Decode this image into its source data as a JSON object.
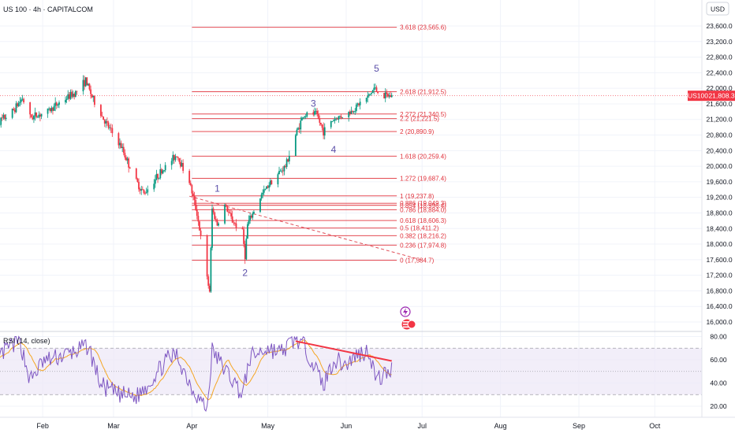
{
  "header": {
    "symbol_label": "US 100 · 4h · CAPITALCOM",
    "currency": "USD"
  },
  "price_badge": {
    "symbol": "US100",
    "price": "21,808.3"
  },
  "colors": {
    "up": "#089981",
    "down": "#f23645",
    "fib": "#e0303a",
    "wave": "#5b4fa8",
    "rsi_line": "#7e57c2",
    "rsi_ma": "#f5a623",
    "rsi_band": "#ede7f6",
    "divergence": "#f23645",
    "projection": "#e0505a",
    "grid": "#f0f3fa",
    "text": "#131722"
  },
  "chart_data": [
    {
      "type": "candlestick",
      "timeframe": "4h",
      "y_axis_ticks": [
        16000,
        16400,
        16800,
        17200,
        17600,
        18000,
        18400,
        18800,
        19200,
        19600,
        20000,
        20400,
        20800,
        21200,
        21600,
        22000,
        22400,
        22800,
        23200,
        23600
      ],
      "y_axis_tick_labels": [
        "16,000.0",
        "16,400.0",
        "16,800.0",
        "17,200.0",
        "17,600.0",
        "18,000.0",
        "18,400.0",
        "18,800.0",
        "19,200.0",
        "19,600.0",
        "20,000.0",
        "20,400.0",
        "20,800.0",
        "21,200.0",
        "21,600.0",
        "22,000.0",
        "22,400.0",
        "22,800.0",
        "23,200.0",
        "23,600.0"
      ],
      "ylim": [
        15900,
        23900
      ],
      "x_axis_labels": [
        {
          "label": "Feb",
          "date": "2025-02-01"
        },
        {
          "label": "Mar",
          "date": "2025-03-01"
        },
        {
          "label": "Apr",
          "date": "2025-04-01"
        },
        {
          "label": "May",
          "date": "2025-05-01"
        },
        {
          "label": "Jun",
          "date": "2025-06-01"
        },
        {
          "label": "Jul",
          "date": "2025-07-01"
        },
        {
          "label": "Aug",
          "date": "2025-08-01"
        },
        {
          "label": "Sep",
          "date": "2025-09-01"
        },
        {
          "label": "Oct",
          "date": "2025-10-01"
        }
      ],
      "xlim": [
        "2025-01-12",
        "2025-10-19"
      ],
      "price_path": [
        [
          "2025-01-12",
          20900
        ],
        [
          "2025-01-15",
          21150
        ],
        [
          "2025-01-20",
          21400
        ],
        [
          "2025-01-24",
          21750
        ],
        [
          "2025-01-27",
          21250
        ],
        [
          "2025-02-03",
          21400
        ],
        [
          "2025-02-08",
          21650
        ],
        [
          "2025-02-14",
          21900
        ],
        [
          "2025-02-18",
          22200
        ],
        [
          "2025-02-21",
          21700
        ],
        [
          "2025-02-26",
          21100
        ],
        [
          "2025-03-04",
          20500
        ],
        [
          "2025-03-10",
          19600
        ],
        [
          "2025-03-13",
          19300
        ],
        [
          "2025-03-19",
          19800
        ],
        [
          "2025-03-26",
          20300
        ],
        [
          "2025-03-31",
          19600
        ],
        [
          "2025-04-03",
          18800
        ],
        [
          "2025-04-07",
          17100
        ],
        [
          "2025-04-08",
          16800
        ],
        [
          "2025-04-09",
          18900
        ],
        [
          "2025-04-11",
          18500
        ],
        [
          "2025-04-14",
          19000
        ],
        [
          "2025-04-17",
          18600
        ],
        [
          "2025-04-21",
          18300
        ],
        [
          "2025-04-22",
          17700
        ],
        [
          "2025-04-23",
          18500
        ],
        [
          "2025-04-28",
          19200
        ],
        [
          "2025-05-02",
          19600
        ],
        [
          "2025-05-08",
          20000
        ],
        [
          "2025-05-12",
          20800
        ],
        [
          "2025-05-15",
          21300
        ],
        [
          "2025-05-20",
          21350
        ],
        [
          "2025-05-23",
          20900
        ],
        [
          "2025-05-27",
          21200
        ],
        [
          "2025-06-03",
          21400
        ],
        [
          "2025-06-06",
          21600
        ],
        [
          "2025-06-10",
          21800
        ],
        [
          "2025-06-12",
          22000
        ],
        [
          "2025-06-16",
          21800
        ],
        [
          "2025-06-19",
          21808
        ]
      ],
      "fib_levels": [
        {
          "label": "3.618 (23,565.6)",
          "value": 23565.6
        },
        {
          "label": "2.618 (21,912.5)",
          "value": 21912.5
        },
        {
          "label": "2.272 (21,340.5)",
          "value": 21340.5
        },
        {
          "label": "2.2 (21,221.5)",
          "value": 21221.5
        },
        {
          "label": "2 (20,890.9)",
          "value": 20890.9
        },
        {
          "label": "1.618 (20,259.4)",
          "value": 20259.4
        },
        {
          "label": "1.272 (19,687.4)",
          "value": 19687.4
        },
        {
          "label": "1 (19,237.8)",
          "value": 19237.8
        },
        {
          "label": "0.886 (19,049.3)",
          "value": 19049.3
        },
        {
          "label": "0.854 (18,996.4)",
          "value": 18996.4
        },
        {
          "label": "0.786 (18,884.0)",
          "value": 18884.0
        },
        {
          "label": "0.618 (18,606.3)",
          "value": 18606.3
        },
        {
          "label": "0.5 (18,411.2)",
          "value": 18411.2
        },
        {
          "label": "0.382 (18,216.2)",
          "value": 18216.2
        },
        {
          "label": "0.236 (17,974.8)",
          "value": 17974.8
        },
        {
          "label": "0 (17,584.7)",
          "value": 17584.7
        }
      ],
      "fib_start_date": "2025-04-01",
      "fib_end_date": "2025-06-21",
      "waves": [
        {
          "label": "1",
          "date": "2025-04-11",
          "price": 19350
        },
        {
          "label": "2",
          "date": "2025-04-22",
          "price": 17180
        },
        {
          "label": "3",
          "date": "2025-05-19",
          "price": 21530
        },
        {
          "label": "4",
          "date": "2025-05-27",
          "price": 20350
        },
        {
          "label": "5",
          "date": "2025-06-13",
          "price": 22430
        }
      ],
      "projection_line": {
        "from": [
          "2025-03-31",
          19230
        ],
        "to": [
          "2025-07-01",
          17590
        ]
      },
      "last_price": 21808.3
    },
    {
      "type": "line",
      "title": "RSI (14, close)",
      "y_axis_ticks": [
        20,
        40,
        60,
        80
      ],
      "y_axis_tick_labels": [
        "20.00",
        "40.00",
        "60.00",
        "80.00"
      ],
      "ylim": [
        12,
        84
      ],
      "band": [
        30,
        70
      ],
      "midline": 50,
      "rsi_path": [
        [
          "2025-01-12",
          55
        ],
        [
          "2025-01-18",
          70
        ],
        [
          "2025-01-23",
          76
        ],
        [
          "2025-01-27",
          42
        ],
        [
          "2025-02-01",
          58
        ],
        [
          "2025-02-08",
          63
        ],
        [
          "2025-02-15",
          68
        ],
        [
          "2025-02-19",
          72
        ],
        [
          "2025-02-24",
          38
        ],
        [
          "2025-03-03",
          30
        ],
        [
          "2025-03-10",
          28
        ],
        [
          "2025-03-15",
          40
        ],
        [
          "2025-03-22",
          60
        ],
        [
          "2025-03-26",
          64
        ],
        [
          "2025-04-01",
          36
        ],
        [
          "2025-04-07",
          17
        ],
        [
          "2025-04-09",
          68
        ],
        [
          "2025-04-14",
          52
        ],
        [
          "2025-04-21",
          30
        ],
        [
          "2025-04-24",
          62
        ],
        [
          "2025-05-01",
          70
        ],
        [
          "2025-05-06",
          66
        ],
        [
          "2025-05-12",
          78
        ],
        [
          "2025-05-16",
          70
        ],
        [
          "2025-05-23",
          38
        ],
        [
          "2025-05-27",
          60
        ],
        [
          "2025-06-01",
          56
        ],
        [
          "2025-06-05",
          64
        ],
        [
          "2025-06-10",
          68
        ],
        [
          "2025-06-13",
          42
        ],
        [
          "2025-06-19",
          52
        ]
      ],
      "divergence_line": {
        "from": [
          "2025-05-12",
          76
        ],
        "to": [
          "2025-06-19",
          59
        ]
      }
    }
  ]
}
